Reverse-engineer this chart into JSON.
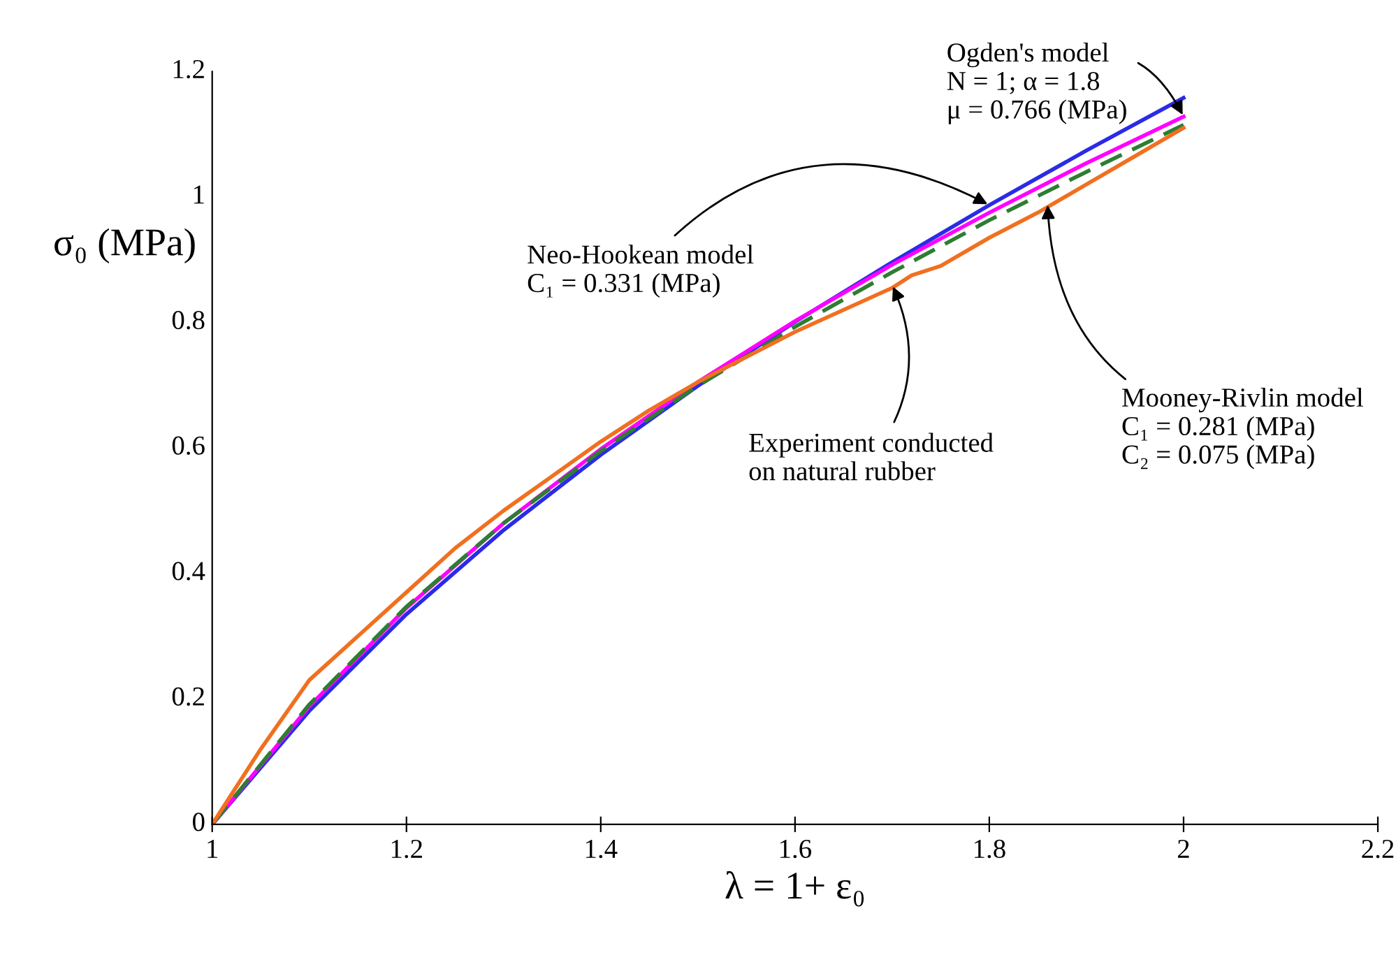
{
  "chart_data": {
    "type": "line",
    "xlabel": "λ = 1+ ε₀",
    "ylabel": "σ₀ (MPa)",
    "x": [
      1,
      1.1,
      1.2,
      1.3,
      1.4,
      1.5,
      1.6,
      1.7,
      1.8,
      1.9,
      2
    ],
    "series": [
      {
        "color": "#2b2be6",
        "values": [
          0,
          0.181,
          0.335,
          0.469,
          0.589,
          0.699,
          0.801,
          0.896,
          0.987,
          1.074,
          1.158
        ]
      },
      {
        "color": "#ff00ff",
        "values": [
          0,
          0.188,
          0.345,
          0.48,
          0.598,
          0.705,
          0.802,
          0.892,
          0.975,
          1.054,
          1.128
        ]
      },
      {
        "color": "#2e7d32",
        "line_style": "dashed",
        "values": [
          0,
          0.191,
          0.347,
          0.48,
          0.595,
          0.699,
          0.793,
          0.88,
          0.963,
          1.04,
          1.115
        ]
      },
      {
        "color": "#f07020",
        "x": [
          1,
          1.05,
          1.1,
          1.15,
          1.2,
          1.25,
          1.3,
          1.35,
          1.4,
          1.45,
          1.5,
          1.55,
          1.6,
          1.65,
          1.7,
          1.72,
          1.75,
          1.8,
          1.85,
          1.9,
          1.95,
          2
        ],
        "values": [
          0,
          0.12,
          0.23,
          0.3,
          0.37,
          0.44,
          0.5,
          0.555,
          0.61,
          0.66,
          0.705,
          0.745,
          0.785,
          0.82,
          0.855,
          0.875,
          0.89,
          0.935,
          0.975,
          1.02,
          1.065,
          1.11
        ]
      }
    ],
    "annotations": [
      {
        "text": "Ogden's model\nN = 1; α = 1.8\nμ = 0.766 (MPa)",
        "x": 2,
        "y": 1.128
      },
      {
        "text": "Neo-Hookean model\nC₁ = 0.331 (MPa)",
        "x": 1.8,
        "y": 0.987
      },
      {
        "text": "Mooney-Rivlin model\nC₁ = 0.281 (MPa)\nC₂ = 0.075 (MPa)",
        "x": 1.86,
        "y": 0.99
      },
      {
        "text": "Experiment conducted\non natural rubber",
        "x": 1.7,
        "y": 0.86
      }
    ],
    "xlim": [
      1,
      2.2
    ],
    "xticks": [
      1,
      1.2,
      1.4,
      1.6,
      1.8,
      2,
      2.2
    ],
    "ylim": [
      0,
      1.2
    ],
    "yticks": [
      0,
      0.2,
      0.4,
      0.6,
      0.8,
      1,
      1.2
    ],
    "grid": false,
    "legend": false,
    "marker": "none"
  }
}
